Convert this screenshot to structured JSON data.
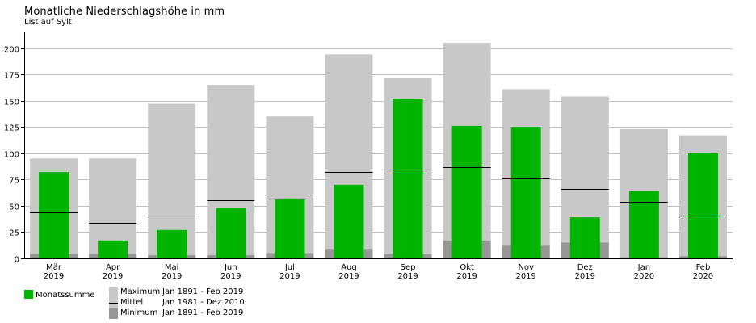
{
  "chart_data": {
    "type": "bar",
    "title": "Monatliche Niederschlagshöhe in mm",
    "subtitle": "List auf Sylt",
    "xlabel": "",
    "ylabel": "",
    "ylim": [
      0,
      215
    ],
    "yticks": [
      0,
      25,
      50,
      75,
      100,
      125,
      150,
      175,
      200
    ],
    "grid": true,
    "categories": [
      [
        "Mär",
        "2019"
      ],
      [
        "Apr",
        "2019"
      ],
      [
        "Mai",
        "2019"
      ],
      [
        "Jun",
        "2019"
      ],
      [
        "Jul",
        "2019"
      ],
      [
        "Aug",
        "2019"
      ],
      [
        "Sep",
        "2019"
      ],
      [
        "Okt",
        "2019"
      ],
      [
        "Nov",
        "2019"
      ],
      [
        "Dez",
        "2019"
      ],
      [
        "Jan",
        "2020"
      ],
      [
        "Feb",
        "2020"
      ]
    ],
    "series": [
      {
        "name": "Monatssumme",
        "color": "#00b400",
        "values": [
          82,
          17,
          27,
          48,
          57,
          70,
          152,
          126,
          125,
          39,
          64,
          100
        ]
      },
      {
        "name": "Maximum",
        "period": "Jan 1891 - Feb 2019",
        "color": "#c8c8c8",
        "values": [
          95,
          95,
          147,
          165,
          135,
          194,
          172,
          205,
          161,
          154,
          123,
          117
        ]
      },
      {
        "name": "Mittel",
        "period": "Jan 1981 - Dez 2010",
        "color": "#000000",
        "values": [
          44,
          34,
          41,
          55,
          57,
          82,
          81,
          87,
          76,
          66,
          54,
          41
        ]
      },
      {
        "name": "Minimum",
        "period": "Jan 1891 - Feb 2019",
        "color": "#969696",
        "values": [
          4,
          4,
          3,
          3,
          5,
          9,
          4,
          17,
          12,
          15,
          1,
          2
        ]
      }
    ],
    "legend": {
      "placement": "bottom-left",
      "monthly_label": "Monatssumme",
      "max_label": "Maximum",
      "max_period": "Jan 1891 - Feb 2019",
      "mean_label": "Mittel",
      "mean_period": "Jan 1981 - Dez 2010",
      "min_label": "Minimum",
      "min_period": "Jan 1891 - Feb 2019"
    }
  }
}
